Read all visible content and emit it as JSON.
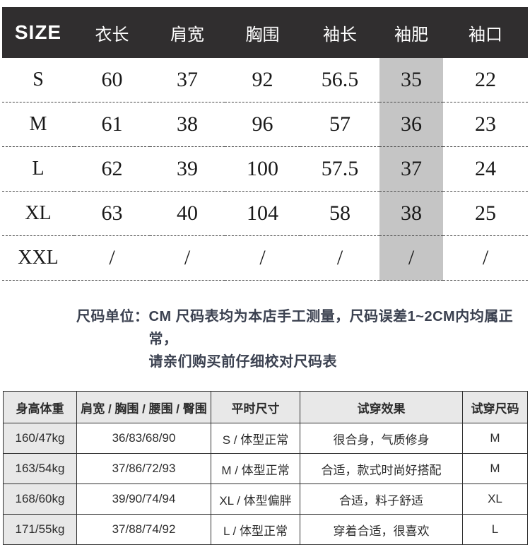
{
  "colors": {
    "header_bg": "#302e2f",
    "header_text": "#ffffff",
    "highlight_column_bg": "#c5c5c5",
    "fit_table_shade_bg": "#e8e8e8",
    "note_text": "#3b4150",
    "dashed_line": "#454545"
  },
  "size_table": {
    "headers": [
      "SIZE",
      "衣长",
      "肩宽",
      "胸围",
      "袖长",
      "袖肥",
      "袖口"
    ],
    "highlighted_header": "袖肥",
    "rows": [
      {
        "size": "S",
        "values": [
          "60",
          "37",
          "92",
          "56.5",
          "35",
          "22"
        ]
      },
      {
        "size": "M",
        "values": [
          "61",
          "38",
          "96",
          "57",
          "36",
          "23"
        ]
      },
      {
        "size": "L",
        "values": [
          "62",
          "39",
          "100",
          "57.5",
          "37",
          "24"
        ]
      },
      {
        "size": "XL",
        "values": [
          "63",
          "40",
          "104",
          "58",
          "38",
          "25"
        ]
      },
      {
        "size": "XXL",
        "values": [
          "/",
          "/",
          "/",
          "/",
          "/",
          "/"
        ]
      }
    ]
  },
  "note": {
    "label": "尺码单位：",
    "line1": "CM 尺码表均为本店手工测量，尺码误差1~2CM内均属正常，",
    "line2": "请亲们购买前仔细校对尺码表"
  },
  "fit_table": {
    "headers": [
      "身高体重",
      "肩宽 / 胸围 / 腰围 / 臀围",
      "平时尺寸",
      "试穿效果",
      "试穿尺码"
    ],
    "rows": [
      [
        "160/47kg",
        "36/83/68/90",
        "S / 体型正常",
        "很合身，气质修身",
        "M"
      ],
      [
        "163/54kg",
        "37/86/72/93",
        "M / 体型正常",
        "合适，款式时尚好搭配",
        "M"
      ],
      [
        "168/60kg",
        "39/90/74/94",
        "XL / 体型偏胖",
        "合适，料子舒适",
        "XL"
      ],
      [
        "171/55kg",
        "37/88/74/92",
        "L / 体型正常",
        "穿着合适，很喜欢",
        "L"
      ]
    ]
  }
}
